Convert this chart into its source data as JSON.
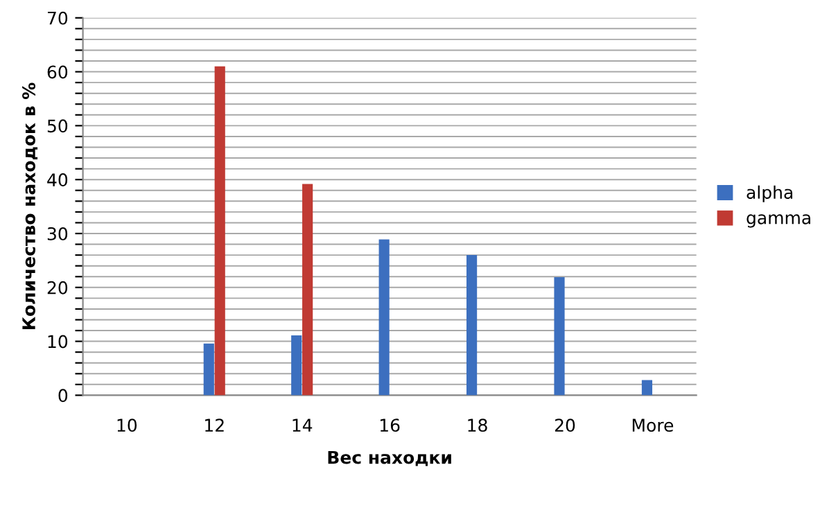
{
  "chart_data": {
    "type": "bar",
    "xlabel": "Вес находки",
    "ylabel": "Количество находок в %",
    "categories": [
      "10",
      "12",
      "14",
      "16",
      "18",
      "20",
      "More"
    ],
    "series": [
      {
        "name": "alpha",
        "color": "#3c6fbf",
        "values": [
          0,
          9.6,
          11.1,
          28.9,
          26,
          21.9,
          2.8
        ]
      },
      {
        "name": "gamma",
        "color": "#c03a33",
        "values": [
          0,
          61,
          39.2,
          0,
          0,
          0,
          0
        ]
      }
    ],
    "ylim": [
      0,
      70
    ],
    "yticks": [
      0,
      {
        "value": 2,
        "label": null
      },
      {
        "value": 4,
        "label": null
      },
      {
        "value": 6,
        "label": null
      },
      {
        "value": 8,
        "label": null
      },
      10,
      {
        "value": 12,
        "label": null
      },
      {
        "value": 14,
        "label": null
      },
      {
        "value": 16,
        "label": null
      },
      {
        "value": 18,
        "label": null
      },
      20,
      {
        "value": 22,
        "label": null
      },
      {
        "value": 24,
        "label": null
      },
      {
        "value": 26,
        "label": null
      },
      {
        "value": 28,
        "label": null
      },
      30,
      {
        "value": 32,
        "label": null
      },
      {
        "value": 34,
        "label": null
      },
      {
        "value": 36,
        "label": null
      },
      {
        "value": 38,
        "label": null
      },
      40,
      {
        "value": 42,
        "label": null
      },
      {
        "value": 44,
        "label": null
      },
      {
        "value": 46,
        "label": null
      },
      {
        "value": 48,
        "label": null
      },
      50,
      {
        "value": 52,
        "label": null
      },
      {
        "value": 54,
        "label": null
      },
      {
        "value": 56,
        "label": null
      },
      {
        "value": 58,
        "label": null
      },
      60,
      {
        "value": 62,
        "label": null
      },
      {
        "value": 64,
        "label": null
      },
      {
        "value": 66,
        "label": null
      },
      {
        "value": 68,
        "label": null
      },
      70
    ],
    "grid": "y",
    "legend": "right"
  }
}
